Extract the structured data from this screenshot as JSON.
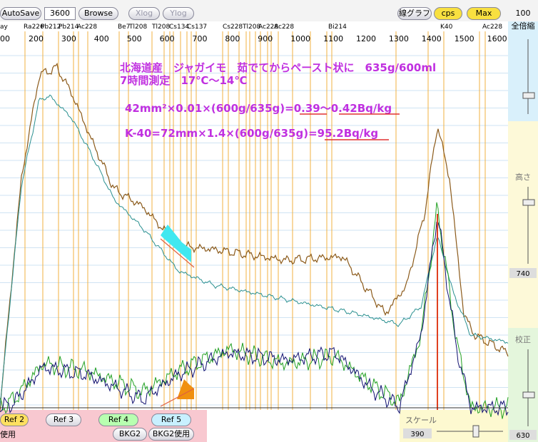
{
  "toolbar": {
    "autosave": "AutoSave",
    "time": "3600",
    "browse": "Browse",
    "xlog": "Xlog",
    "ylog": "Ylog",
    "graph": "線グラフ",
    "cps": "cps",
    "max": "Max",
    "scale_top": "100"
  },
  "peaks": [
    "ay",
    "Ra226",
    "Pb212",
    "Pb214",
    "Ac228",
    "Be7",
    "Tl208",
    "Tl208",
    "Cs134",
    "Cs137",
    "Cs228",
    "Tl208",
    "Ac228",
    "Ac228",
    "Bi214",
    "K40",
    "Ac228"
  ],
  "axis": [
    "00",
    "200",
    "300",
    "400",
    "500",
    "600",
    "700",
    "800",
    "900",
    "1000",
    "1100",
    "1200",
    "1300",
    "1400",
    "1500",
    "1600"
  ],
  "notes": [
    "北海道産　ジャガイモ　茹でてからペースト状に　635g/600ml",
    "7時間測定　17℃～14℃",
    "42mm²×0.01×(600g/635g)=0.39～0.42Bq/kg",
    "K-40=72mm×1.4×(600g/635g)=95.2Bq/kg"
  ],
  "side": {
    "zoom": "全倍縮",
    "height": "高さ",
    "height_value": "740",
    "calib": "校正",
    "calib_value": "630"
  },
  "bottom": {
    "ref2": "Ref 2",
    "ref3": "Ref 3",
    "ref4": "Ref 4",
    "ref5": "Ref 5",
    "use": "使用",
    "bkg2": "BKG2",
    "bkg2use": "BKG2使用",
    "scale": "スケール",
    "scale_value": "390"
  }
}
